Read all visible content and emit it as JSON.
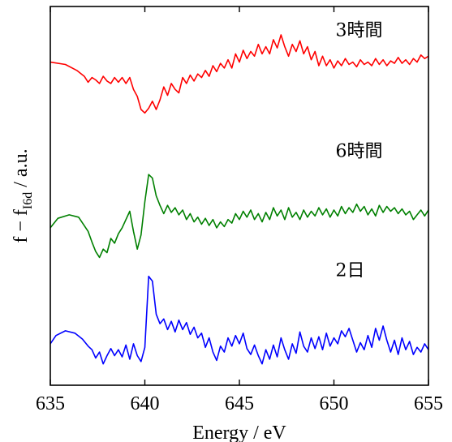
{
  "chart_data": {
    "type": "line",
    "title": "",
    "xlabel": "Energy / eV",
    "ylabel_main": "f − f",
    "ylabel_sub": "I6d",
    "ylabel_tail": " / a.u.",
    "xlim": [
      635,
      655
    ],
    "ylim": [
      0,
      3.2
    ],
    "xticks": [
      635,
      640,
      645,
      650,
      655
    ],
    "xtick_labels": [
      "635",
      "640",
      "645",
      "650",
      "655"
    ],
    "grid": false,
    "series": [
      {
        "name": "3時間",
        "color": "#ff0000",
        "label_x": 650,
        "label_y": 2.95,
        "points": [
          [
            635.0,
            2.73
          ],
          [
            635.8,
            2.71
          ],
          [
            636.4,
            2.66
          ],
          [
            636.8,
            2.61
          ],
          [
            637.0,
            2.56
          ],
          [
            637.2,
            2.6
          ],
          [
            637.4,
            2.58
          ],
          [
            637.6,
            2.55
          ],
          [
            637.8,
            2.61
          ],
          [
            638.0,
            2.57
          ],
          [
            638.2,
            2.55
          ],
          [
            638.4,
            2.6
          ],
          [
            638.6,
            2.56
          ],
          [
            638.8,
            2.6
          ],
          [
            639.0,
            2.55
          ],
          [
            639.2,
            2.6
          ],
          [
            639.4,
            2.5
          ],
          [
            639.6,
            2.44
          ],
          [
            639.8,
            2.33
          ],
          [
            640.0,
            2.3
          ],
          [
            640.2,
            2.34
          ],
          [
            640.4,
            2.4
          ],
          [
            640.6,
            2.33
          ],
          [
            640.8,
            2.41
          ],
          [
            641.0,
            2.52
          ],
          [
            641.2,
            2.45
          ],
          [
            641.4,
            2.55
          ],
          [
            641.6,
            2.5
          ],
          [
            641.8,
            2.47
          ],
          [
            642.0,
            2.6
          ],
          [
            642.2,
            2.55
          ],
          [
            642.4,
            2.62
          ],
          [
            642.6,
            2.57
          ],
          [
            642.8,
            2.63
          ],
          [
            643.0,
            2.6
          ],
          [
            643.2,
            2.66
          ],
          [
            643.4,
            2.61
          ],
          [
            643.6,
            2.7
          ],
          [
            643.8,
            2.65
          ],
          [
            644.0,
            2.72
          ],
          [
            644.2,
            2.68
          ],
          [
            644.4,
            2.75
          ],
          [
            644.6,
            2.68
          ],
          [
            644.8,
            2.8
          ],
          [
            645.0,
            2.73
          ],
          [
            645.2,
            2.83
          ],
          [
            645.4,
            2.76
          ],
          [
            645.6,
            2.82
          ],
          [
            645.8,
            2.78
          ],
          [
            646.0,
            2.88
          ],
          [
            646.2,
            2.8
          ],
          [
            646.4,
            2.86
          ],
          [
            646.6,
            2.8
          ],
          [
            646.8,
            2.92
          ],
          [
            647.0,
            2.85
          ],
          [
            647.2,
            2.96
          ],
          [
            647.4,
            2.86
          ],
          [
            647.6,
            2.78
          ],
          [
            647.8,
            2.88
          ],
          [
            648.0,
            2.82
          ],
          [
            648.2,
            2.91
          ],
          [
            648.4,
            2.8
          ],
          [
            648.6,
            2.86
          ],
          [
            648.8,
            2.75
          ],
          [
            649.0,
            2.82
          ],
          [
            649.2,
            2.7
          ],
          [
            649.4,
            2.78
          ],
          [
            649.6,
            2.7
          ],
          [
            649.8,
            2.75
          ],
          [
            650.0,
            2.68
          ],
          [
            650.2,
            2.74
          ],
          [
            650.4,
            2.7
          ],
          [
            650.6,
            2.76
          ],
          [
            650.8,
            2.71
          ],
          [
            651.0,
            2.73
          ],
          [
            651.2,
            2.69
          ],
          [
            651.4,
            2.75
          ],
          [
            651.6,
            2.71
          ],
          [
            651.8,
            2.73
          ],
          [
            652.0,
            2.7
          ],
          [
            652.2,
            2.76
          ],
          [
            652.4,
            2.71
          ],
          [
            652.6,
            2.75
          ],
          [
            652.8,
            2.7
          ],
          [
            653.0,
            2.74
          ],
          [
            653.2,
            2.72
          ],
          [
            653.4,
            2.77
          ],
          [
            653.6,
            2.72
          ],
          [
            653.8,
            2.75
          ],
          [
            654.0,
            2.71
          ],
          [
            654.2,
            2.76
          ],
          [
            654.4,
            2.73
          ],
          [
            654.6,
            2.79
          ],
          [
            654.8,
            2.76
          ],
          [
            655.0,
            2.78
          ]
        ]
      },
      {
        "name": "6時間",
        "color": "#008000",
        "label_x": 650,
        "label_y": 1.93,
        "points": [
          [
            635.0,
            1.33
          ],
          [
            635.4,
            1.41
          ],
          [
            636.0,
            1.44
          ],
          [
            636.5,
            1.42
          ],
          [
            637.0,
            1.3
          ],
          [
            637.2,
            1.21
          ],
          [
            637.4,
            1.13
          ],
          [
            637.6,
            1.08
          ],
          [
            637.8,
            1.15
          ],
          [
            638.0,
            1.12
          ],
          [
            638.2,
            1.24
          ],
          [
            638.4,
            1.2
          ],
          [
            638.6,
            1.28
          ],
          [
            638.8,
            1.33
          ],
          [
            639.0,
            1.4
          ],
          [
            639.2,
            1.47
          ],
          [
            639.4,
            1.3
          ],
          [
            639.6,
            1.15
          ],
          [
            639.8,
            1.27
          ],
          [
            640.0,
            1.55
          ],
          [
            640.2,
            1.78
          ],
          [
            640.4,
            1.75
          ],
          [
            640.6,
            1.6
          ],
          [
            640.8,
            1.52
          ],
          [
            641.0,
            1.45
          ],
          [
            641.2,
            1.52
          ],
          [
            641.4,
            1.46
          ],
          [
            641.6,
            1.5
          ],
          [
            641.8,
            1.44
          ],
          [
            642.0,
            1.48
          ],
          [
            642.2,
            1.4
          ],
          [
            642.4,
            1.45
          ],
          [
            642.6,
            1.38
          ],
          [
            642.8,
            1.42
          ],
          [
            643.0,
            1.36
          ],
          [
            643.2,
            1.41
          ],
          [
            643.4,
            1.35
          ],
          [
            643.6,
            1.4
          ],
          [
            643.8,
            1.33
          ],
          [
            644.0,
            1.38
          ],
          [
            644.2,
            1.34
          ],
          [
            644.4,
            1.4
          ],
          [
            644.6,
            1.37
          ],
          [
            644.8,
            1.45
          ],
          [
            645.0,
            1.4
          ],
          [
            645.2,
            1.47
          ],
          [
            645.4,
            1.42
          ],
          [
            645.6,
            1.48
          ],
          [
            645.8,
            1.4
          ],
          [
            646.0,
            1.45
          ],
          [
            646.2,
            1.38
          ],
          [
            646.4,
            1.46
          ],
          [
            646.6,
            1.4
          ],
          [
            646.8,
            1.5
          ],
          [
            647.0,
            1.43
          ],
          [
            647.2,
            1.48
          ],
          [
            647.4,
            1.4
          ],
          [
            647.6,
            1.5
          ],
          [
            647.8,
            1.42
          ],
          [
            648.0,
            1.46
          ],
          [
            648.2,
            1.4
          ],
          [
            648.4,
            1.48
          ],
          [
            648.6,
            1.42
          ],
          [
            648.8,
            1.47
          ],
          [
            649.0,
            1.43
          ],
          [
            649.2,
            1.5
          ],
          [
            649.4,
            1.44
          ],
          [
            649.6,
            1.49
          ],
          [
            649.8,
            1.42
          ],
          [
            650.0,
            1.48
          ],
          [
            650.2,
            1.43
          ],
          [
            650.4,
            1.51
          ],
          [
            650.6,
            1.45
          ],
          [
            650.8,
            1.5
          ],
          [
            651.0,
            1.46
          ],
          [
            651.2,
            1.53
          ],
          [
            651.4,
            1.47
          ],
          [
            651.6,
            1.51
          ],
          [
            651.8,
            1.44
          ],
          [
            652.0,
            1.49
          ],
          [
            652.2,
            1.43
          ],
          [
            652.4,
            1.52
          ],
          [
            652.6,
            1.46
          ],
          [
            652.8,
            1.51
          ],
          [
            653.0,
            1.47
          ],
          [
            653.2,
            1.5
          ],
          [
            653.4,
            1.45
          ],
          [
            653.6,
            1.49
          ],
          [
            653.8,
            1.44
          ],
          [
            654.0,
            1.47
          ],
          [
            654.2,
            1.4
          ],
          [
            654.4,
            1.44
          ],
          [
            654.6,
            1.48
          ],
          [
            654.8,
            1.43
          ],
          [
            655.0,
            1.48
          ]
        ]
      },
      {
        "name": "2日",
        "color": "#0000ff",
        "label_x": 650,
        "label_y": 0.92,
        "points": [
          [
            635.0,
            0.35
          ],
          [
            635.3,
            0.42
          ],
          [
            635.8,
            0.46
          ],
          [
            636.3,
            0.44
          ],
          [
            636.7,
            0.39
          ],
          [
            637.0,
            0.33
          ],
          [
            637.2,
            0.3
          ],
          [
            637.4,
            0.23
          ],
          [
            637.6,
            0.28
          ],
          [
            637.8,
            0.18
          ],
          [
            638.0,
            0.25
          ],
          [
            638.2,
            0.31
          ],
          [
            638.4,
            0.25
          ],
          [
            638.6,
            0.3
          ],
          [
            638.8,
            0.24
          ],
          [
            639.0,
            0.34
          ],
          [
            639.2,
            0.22
          ],
          [
            639.4,
            0.35
          ],
          [
            639.6,
            0.25
          ],
          [
            639.8,
            0.2
          ],
          [
            640.0,
            0.32
          ],
          [
            640.2,
            0.92
          ],
          [
            640.4,
            0.88
          ],
          [
            640.6,
            0.6
          ],
          [
            640.8,
            0.52
          ],
          [
            641.0,
            0.56
          ],
          [
            641.2,
            0.47
          ],
          [
            641.4,
            0.54
          ],
          [
            641.6,
            0.45
          ],
          [
            641.8,
            0.55
          ],
          [
            642.0,
            0.47
          ],
          [
            642.2,
            0.53
          ],
          [
            642.4,
            0.43
          ],
          [
            642.6,
            0.49
          ],
          [
            642.8,
            0.4
          ],
          [
            643.0,
            0.44
          ],
          [
            643.2,
            0.32
          ],
          [
            643.4,
            0.4
          ],
          [
            643.6,
            0.28
          ],
          [
            643.8,
            0.21
          ],
          [
            644.0,
            0.33
          ],
          [
            644.2,
            0.28
          ],
          [
            644.4,
            0.4
          ],
          [
            644.6,
            0.33
          ],
          [
            644.8,
            0.42
          ],
          [
            645.0,
            0.35
          ],
          [
            645.2,
            0.44
          ],
          [
            645.4,
            0.31
          ],
          [
            645.6,
            0.26
          ],
          [
            645.8,
            0.34
          ],
          [
            646.0,
            0.25
          ],
          [
            646.2,
            0.18
          ],
          [
            646.4,
            0.3
          ],
          [
            646.6,
            0.22
          ],
          [
            646.8,
            0.34
          ],
          [
            647.0,
            0.24
          ],
          [
            647.2,
            0.4
          ],
          [
            647.4,
            0.3
          ],
          [
            647.6,
            0.22
          ],
          [
            647.8,
            0.35
          ],
          [
            648.0,
            0.27
          ],
          [
            648.2,
            0.45
          ],
          [
            648.4,
            0.33
          ],
          [
            648.6,
            0.28
          ],
          [
            648.8,
            0.4
          ],
          [
            649.0,
            0.31
          ],
          [
            649.2,
            0.41
          ],
          [
            649.4,
            0.3
          ],
          [
            649.6,
            0.44
          ],
          [
            649.8,
            0.33
          ],
          [
            650.0,
            0.4
          ],
          [
            650.2,
            0.35
          ],
          [
            650.4,
            0.46
          ],
          [
            650.6,
            0.41
          ],
          [
            650.8,
            0.48
          ],
          [
            651.0,
            0.38
          ],
          [
            651.2,
            0.28
          ],
          [
            651.4,
            0.36
          ],
          [
            651.6,
            0.3
          ],
          [
            651.8,
            0.42
          ],
          [
            652.0,
            0.32
          ],
          [
            652.2,
            0.48
          ],
          [
            652.4,
            0.38
          ],
          [
            652.6,
            0.5
          ],
          [
            652.8,
            0.38
          ],
          [
            653.0,
            0.28
          ],
          [
            653.2,
            0.38
          ],
          [
            653.4,
            0.26
          ],
          [
            653.6,
            0.4
          ],
          [
            653.8,
            0.3
          ],
          [
            654.0,
            0.37
          ],
          [
            654.2,
            0.26
          ],
          [
            654.4,
            0.32
          ],
          [
            654.6,
            0.28
          ],
          [
            654.8,
            0.35
          ],
          [
            655.0,
            0.3
          ]
        ]
      }
    ]
  }
}
